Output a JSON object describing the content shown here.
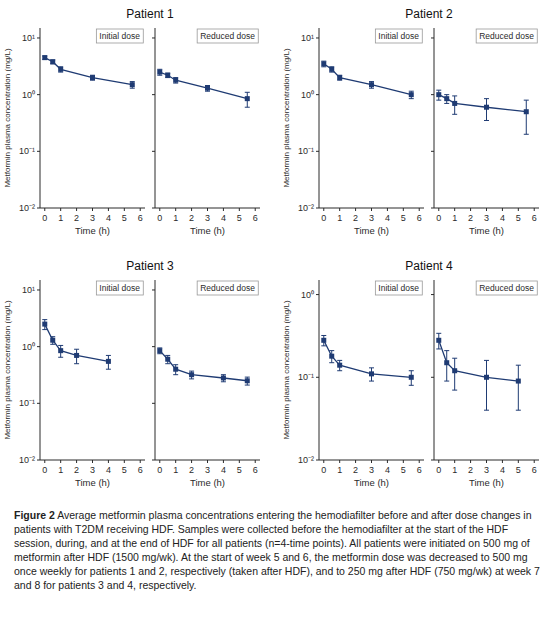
{
  "title": "Figure 2",
  "subtitle": "Average metformin plasma concentrations entering the hemodiafilter before and after dose changes in patients with T2DM receiving HDF. Samples were collected before the hemodiafilter at the start of the HDF session, during, and at the end of HDF for all patients (n=4-time points). All patients were initiated on 500 mg of metformin after HDF (1500 mg/wk). At the start of week 5 and 6, the metformin dose was decreased to 500 mg once weekly for patients 1 and 2, respectively (taken after HDF), and to 250 mg after HDF (750 mg/wk) at week 7 and 8 for patients 3 and 4, respectively.",
  "chart_data": [
    {
      "type": "line",
      "title": "Patient 1",
      "annotations": [
        "Initial dose"
      ],
      "xlabel": "Time (h)",
      "ylabel": "Metformin plasma concentration (mg/L)",
      "x": [
        0,
        0.5,
        1,
        3,
        5.5
      ],
      "values": [
        4.5,
        3.8,
        2.8,
        2.0,
        1.5
      ],
      "errors": [
        0.3,
        0.3,
        0.3,
        0.2,
        0.2
      ],
      "xlim": [
        -0.3,
        6.3
      ],
      "xticks": [
        0,
        1,
        2,
        3,
        4,
        5,
        6
      ],
      "ylim": [
        0.01,
        15
      ],
      "yticks": [
        {
          "value": 0.01,
          "label": "10⁻²"
        },
        {
          "value": 0.1,
          "label": "10⁻¹"
        },
        {
          "value": 1,
          "label": "10⁰"
        },
        {
          "value": 10,
          "label": "10¹"
        }
      ],
      "log": "y",
      "grid": false,
      "marker": "square",
      "line_style": "solid"
    },
    {
      "type": "line",
      "annotations": [
        "Reduced dose"
      ],
      "xlabel": "Time (h)",
      "x": [
        0,
        0.5,
        1,
        3,
        5.5
      ],
      "values": [
        2.5,
        2.2,
        1.8,
        1.3,
        0.85
      ],
      "errors": [
        0.3,
        0.2,
        0.2,
        0.15,
        0.25
      ],
      "xlim": [
        -0.3,
        6.3
      ],
      "xticks": [
        0,
        1,
        2,
        3,
        4,
        5,
        6
      ],
      "ylim": [
        0.01,
        15
      ],
      "yticks": [
        {
          "value": 0.01,
          "label": "10⁻²"
        },
        {
          "value": 0.1,
          "label": "10⁻¹"
        },
        {
          "value": 1,
          "label": "10⁰"
        },
        {
          "value": 10,
          "label": "10¹"
        }
      ],
      "log": "y",
      "grid": false,
      "tick_labels": "x",
      "marker": "square",
      "line_style": "solid"
    },
    {
      "type": "line",
      "title": "Patient 2",
      "annotations": [
        "Initial dose"
      ],
      "xlabel": "Time (h)",
      "ylabel": "Metformin plasma concentration (mg/L)",
      "x": [
        0,
        0.5,
        1,
        3,
        5.5
      ],
      "values": [
        3.5,
        2.8,
        2.0,
        1.5,
        1.0
      ],
      "errors": [
        0.4,
        0.3,
        0.2,
        0.2,
        0.15
      ],
      "xlim": [
        -0.3,
        6.3
      ],
      "xticks": [
        0,
        1,
        2,
        3,
        4,
        5,
        6
      ],
      "ylim": [
        0.01,
        15
      ],
      "yticks": [
        {
          "value": 0.01,
          "label": "10⁻²"
        },
        {
          "value": 0.1,
          "label": "10⁻¹"
        },
        {
          "value": 1,
          "label": "10⁰"
        },
        {
          "value": 10,
          "label": "10¹"
        }
      ],
      "log": "y",
      "grid": false,
      "marker": "square",
      "line_style": "solid"
    },
    {
      "type": "line",
      "annotations": [
        "Reduced dose"
      ],
      "xlabel": "Time (h)",
      "x": [
        0,
        0.5,
        1,
        3,
        5.5
      ],
      "values": [
        1.0,
        0.85,
        0.7,
        0.6,
        0.5
      ],
      "errors": [
        0.2,
        0.15,
        0.25,
        0.25,
        0.3
      ],
      "xlim": [
        -0.3,
        6.3
      ],
      "xticks": [
        0,
        1,
        2,
        3,
        4,
        5,
        6
      ],
      "ylim": [
        0.01,
        15
      ],
      "yticks": [
        {
          "value": 0.01,
          "label": "10⁻²"
        },
        {
          "value": 0.1,
          "label": "10⁻¹"
        },
        {
          "value": 1,
          "label": "10⁰"
        },
        {
          "value": 10,
          "label": "10¹"
        }
      ],
      "log": "y",
      "grid": false,
      "tick_labels": "x",
      "marker": "square",
      "line_style": "solid"
    },
    {
      "type": "line",
      "title": "Patient 3",
      "annotations": [
        "Initial dose"
      ],
      "xlabel": "Time (h)",
      "ylabel": "Metformin plasma concentration (mg/L)",
      "x": [
        0,
        0.5,
        1,
        2,
        4
      ],
      "values": [
        2.5,
        1.3,
        0.85,
        0.7,
        0.55
      ],
      "errors": [
        0.5,
        0.2,
        0.2,
        0.2,
        0.15
      ],
      "xlim": [
        -0.3,
        6.3
      ],
      "xticks": [
        0,
        1,
        2,
        3,
        4,
        5,
        6
      ],
      "ylim": [
        0.01,
        15
      ],
      "yticks": [
        {
          "value": 0.01,
          "label": "10⁻²"
        },
        {
          "value": 0.1,
          "label": "10⁻¹"
        },
        {
          "value": 1,
          "label": "10⁰"
        },
        {
          "value": 10,
          "label": "10¹"
        }
      ],
      "log": "y",
      "grid": false,
      "marker": "square",
      "line_style": "solid"
    },
    {
      "type": "line",
      "annotations": [
        "Reduced dose"
      ],
      "xlabel": "Time (h)",
      "x": [
        0,
        0.5,
        1,
        2,
        4,
        5.5
      ],
      "values": [
        0.85,
        0.6,
        0.4,
        0.32,
        0.28,
        0.25
      ],
      "errors": [
        0.1,
        0.1,
        0.08,
        0.05,
        0.04,
        0.04
      ],
      "xlim": [
        -0.3,
        6.3
      ],
      "xticks": [
        0,
        1,
        2,
        3,
        4,
        5,
        6
      ],
      "ylim": [
        0.01,
        15
      ],
      "yticks": [
        {
          "value": 0.01,
          "label": "10⁻²"
        },
        {
          "value": 0.1,
          "label": "10⁻¹"
        },
        {
          "value": 1,
          "label": "10⁰"
        },
        {
          "value": 10,
          "label": "10¹"
        }
      ],
      "log": "y",
      "grid": false,
      "tick_labels": "x",
      "marker": "square",
      "line_style": "solid"
    },
    {
      "type": "line",
      "title": "Patient 4",
      "annotations": [
        "Initial dose"
      ],
      "xlabel": "Time (h)",
      "ylabel": "Metformin plasma concentration (mg/L)",
      "x": [
        0,
        0.5,
        1,
        3,
        5.5
      ],
      "values": [
        0.28,
        0.18,
        0.14,
        0.11,
        0.1
      ],
      "errors": [
        0.04,
        0.03,
        0.02,
        0.02,
        0.02
      ],
      "xlim": [
        -0.3,
        6.3
      ],
      "xticks": [
        0,
        1,
        2,
        3,
        4,
        5,
        6
      ],
      "ylim": [
        0.01,
        1.5
      ],
      "yticks": [
        {
          "value": 0.01,
          "label": "10⁻²"
        },
        {
          "value": 0.1,
          "label": "10⁻¹"
        },
        {
          "value": 1,
          "label": "10⁰"
        }
      ],
      "log": "y",
      "grid": false,
      "marker": "square",
      "line_style": "solid"
    },
    {
      "type": "line",
      "annotations": [
        "Reduced dose"
      ],
      "xlabel": "Time (h)",
      "x": [
        0,
        0.5,
        1,
        3,
        5
      ],
      "values": [
        0.28,
        0.15,
        0.12,
        0.1,
        0.09
      ],
      "errors": [
        0.06,
        0.06,
        0.05,
        0.06,
        0.05
      ],
      "xlim": [
        -0.3,
        6.3
      ],
      "xticks": [
        0,
        1,
        2,
        3,
        4,
        5,
        6
      ],
      "ylim": [
        0.01,
        1.5
      ],
      "yticks": [
        {
          "value": 0.01,
          "label": "10⁻²"
        },
        {
          "value": 0.1,
          "label": "10⁻¹"
        },
        {
          "value": 1,
          "label": "10⁰"
        }
      ],
      "log": "y",
      "grid": false,
      "tick_labels": "x",
      "marker": "square",
      "line_style": "solid"
    }
  ]
}
